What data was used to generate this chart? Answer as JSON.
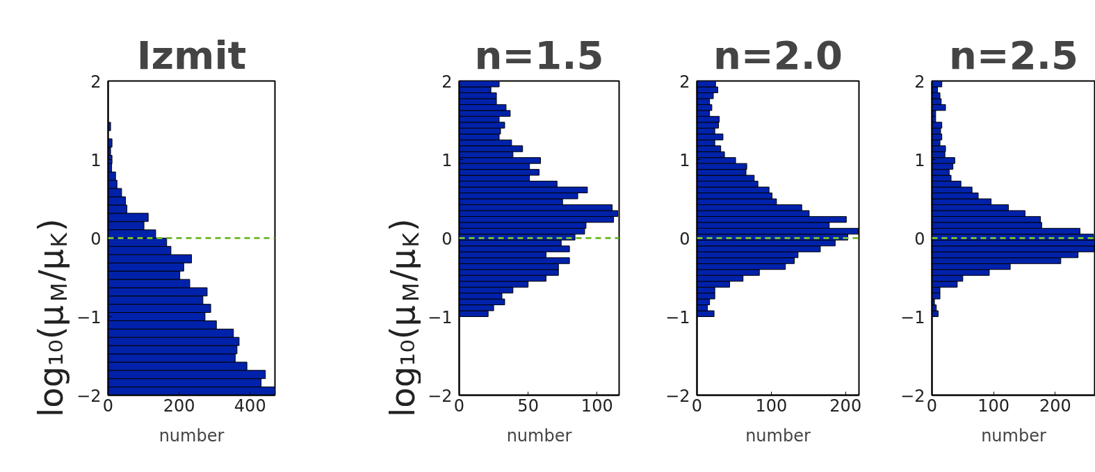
{
  "chart_data": [
    {
      "type": "histogram",
      "orientation": "horizontal",
      "title": "Izmit",
      "xlabel": "number",
      "ylabel": "log₁₀(μ$_{M}$/μ$_{K}$)",
      "color": "#0022aa",
      "grid": false,
      "xlim": [
        0,
        470
      ],
      "xticks": [
        0,
        200,
        400
      ],
      "ylim": [
        -2,
        2
      ],
      "yticks": [
        -2,
        -1,
        0,
        1,
        2
      ],
      "bins": [
        -2,
        -1.895,
        -1.789,
        -1.684,
        -1.579,
        -1.474,
        -1.368,
        -1.263,
        -1.158,
        -1.053,
        -0.947,
        -0.842,
        -0.737,
        -0.632,
        -0.526,
        -0.421,
        -0.316,
        -0.211,
        -0.105,
        0,
        0.105,
        0.211,
        0.316,
        0.421,
        0.526,
        0.632,
        0.737,
        0.842,
        0.947,
        1.053,
        1.158,
        1.263,
        1.368,
        1.474,
        1.579,
        1.684,
        1.789,
        1.895,
        2
      ],
      "values": [
        470,
        431,
        443,
        391,
        358,
        363,
        369,
        353,
        305,
        273,
        289,
        267,
        279,
        230,
        202,
        213,
        235,
        177,
        165,
        134,
        101,
        113,
        53,
        49,
        38,
        25,
        21,
        10,
        11,
        7,
        11,
        0,
        7,
        0,
        0,
        0,
        0,
        0
      ],
      "ref_lines": [
        {
          "axis": "y",
          "value": 0,
          "color": "#77bb33",
          "line_style": "dashed"
        }
      ]
    },
    {
      "type": "histogram",
      "orientation": "horizontal",
      "title": "n=1.5",
      "xlabel": "number",
      "ylabel": "log₁₀(μ$_{M}$/μ$_{K}$)",
      "color": "#0022aa",
      "grid": false,
      "xlim": [
        0,
        116
      ],
      "xticks": [
        0,
        50,
        100
      ],
      "ylim": [
        -2,
        2
      ],
      "yticks": [
        -2,
        -1,
        0,
        1,
        2
      ],
      "bins": [
        -1,
        -0.925,
        -0.85,
        -0.775,
        -0.7,
        -0.625,
        -0.55,
        -0.475,
        -0.4,
        -0.325,
        -0.25,
        -0.175,
        -0.1,
        -0.025,
        0.05,
        0.125,
        0.2,
        0.275,
        0.35,
        0.425,
        0.5,
        0.575,
        0.65,
        0.725,
        0.8,
        0.875,
        0.95,
        1.025,
        1.1,
        1.175,
        1.25,
        1.325,
        1.4,
        1.475,
        1.55,
        1.625,
        1.7,
        1.775,
        1.85,
        1.925,
        2
      ],
      "values": [
        21,
        25,
        33,
        31,
        39,
        50,
        63,
        72,
        72,
        80,
        63,
        80,
        74,
        84,
        91,
        92,
        112,
        115,
        111,
        75,
        86,
        93,
        71,
        51,
        58,
        51,
        59,
        39,
        46,
        38,
        29,
        30,
        33,
        29,
        37,
        34,
        27,
        27,
        23,
        29
      ],
      "ref_lines": [
        {
          "axis": "y",
          "value": 0,
          "color": "#77bb33",
          "line_style": "dashed"
        }
      ]
    },
    {
      "type": "histogram",
      "orientation": "horizontal",
      "title": "n=2.0",
      "xlabel": "number",
      "color": "#0022aa",
      "grid": false,
      "xlim": [
        0,
        218
      ],
      "xticks": [
        0,
        100,
        200
      ],
      "ylim": [
        -2,
        2
      ],
      "yticks": [
        -2,
        -1,
        0,
        1,
        2
      ],
      "bins": [
        -1,
        -0.925,
        -0.85,
        -0.775,
        -0.7,
        -0.625,
        -0.55,
        -0.475,
        -0.4,
        -0.325,
        -0.25,
        -0.175,
        -0.1,
        -0.025,
        0.05,
        0.125,
        0.2,
        0.275,
        0.35,
        0.425,
        0.5,
        0.575,
        0.65,
        0.725,
        0.8,
        0.875,
        0.95,
        1.025,
        1.1,
        1.175,
        1.25,
        1.325,
        1.4,
        1.475,
        1.55,
        1.625,
        1.7,
        1.775,
        1.85,
        1.925,
        2
      ],
      "values": [
        23,
        14,
        17,
        24,
        24,
        44,
        62,
        84,
        119,
        131,
        136,
        166,
        186,
        203,
        217,
        178,
        201,
        151,
        141,
        107,
        101,
        97,
        82,
        77,
        66,
        67,
        52,
        37,
        32,
        24,
        35,
        24,
        29,
        30,
        17,
        20,
        17,
        22,
        28,
        25
      ],
      "ref_lines": [
        {
          "axis": "y",
          "value": 0,
          "color": "#77bb33",
          "line_style": "dashed"
        }
      ]
    },
    {
      "type": "histogram",
      "orientation": "horizontal",
      "title": "n=2.5",
      "xlabel": "number",
      "color": "#0022aa",
      "grid": false,
      "xlim": [
        0,
        265
      ],
      "xticks": [
        0,
        100,
        200
      ],
      "ylim": [
        -2,
        2
      ],
      "yticks": [
        -2,
        -1,
        0,
        1,
        2
      ],
      "bins": [
        -1,
        -0.925,
        -0.85,
        -0.775,
        -0.7,
        -0.625,
        -0.55,
        -0.475,
        -0.4,
        -0.325,
        -0.25,
        -0.175,
        -0.1,
        -0.025,
        0.05,
        0.125,
        0.2,
        0.275,
        0.35,
        0.425,
        0.5,
        0.575,
        0.65,
        0.725,
        0.8,
        0.875,
        0.95,
        1.025,
        1.1,
        1.175,
        1.25,
        1.325,
        1.4,
        1.475,
        1.55,
        1.625,
        1.7,
        1.775,
        1.85,
        1.925,
        2
      ],
      "values": [
        10,
        7,
        4,
        13,
        13,
        41,
        50,
        93,
        127,
        209,
        237,
        263,
        264,
        262,
        240,
        178,
        176,
        151,
        124,
        96,
        75,
        65,
        47,
        31,
        28,
        34,
        37,
        21,
        22,
        13,
        16,
        14,
        16,
        6,
        6,
        22,
        15,
        13,
        9,
        16
      ],
      "ref_lines": [
        {
          "axis": "y",
          "value": 0,
          "color": "#77bb33",
          "line_style": "dashed"
        }
      ]
    }
  ]
}
